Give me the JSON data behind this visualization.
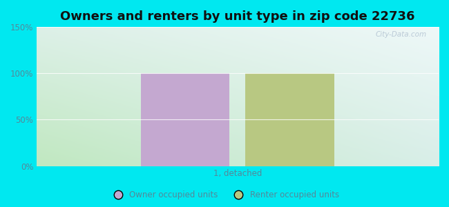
{
  "title": "Owners and renters by unit type in zip code 22736",
  "categories": [
    "1, detached"
  ],
  "owner_values": [
    100
  ],
  "renter_values": [
    100
  ],
  "owner_color": "#c4a8d0",
  "renter_color": "#b8c882",
  "ylim": [
    0,
    150
  ],
  "yticks": [
    0,
    50,
    100,
    150
  ],
  "ytick_labels": [
    "0%",
    "50%",
    "100%",
    "150%"
  ],
  "bg_outer": "#00e8f0",
  "bg_plot_topleft": "#e8f5e8",
  "bg_plot_topright": "#f0f8f8",
  "bg_plot_bottomleft": "#c8e8c0",
  "bg_plot_bottomright": "#e0f0f0",
  "watermark": "City-Data.com",
  "legend_owner": "Owner occupied units",
  "legend_renter": "Renter occupied units",
  "title_fontsize": 13,
  "bar_width": 0.22,
  "bar_gap": 0.04,
  "grid_color": "#ddeeee",
  "tick_color": "#558899",
  "title_color": "#111111"
}
